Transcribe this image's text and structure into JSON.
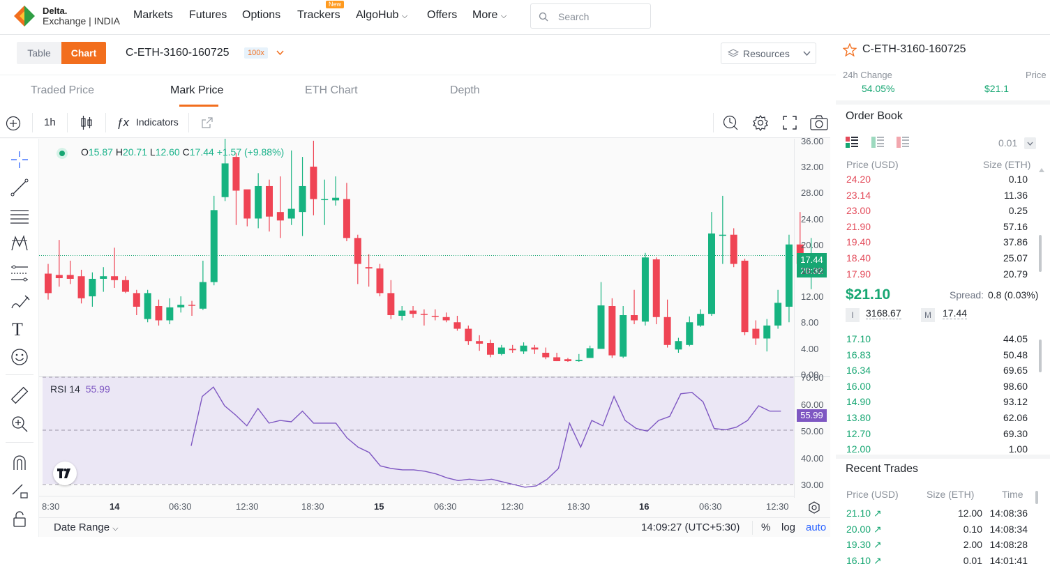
{
  "brand": {
    "line1": "Delta.",
    "line2": "Exchange | INDIA"
  },
  "nav": {
    "items": [
      "Markets",
      "Futures",
      "Options",
      "Trackers",
      "AlgoHub",
      "Offers",
      "More"
    ],
    "new_badge": "New",
    "search_placeholder": "Search"
  },
  "subbar": {
    "table_label": "Table",
    "chart_label": "Chart",
    "symbol": "C-ETH-3160-160725",
    "leverage": "100x",
    "resources_label": "Resources"
  },
  "tabs": [
    "Traded Price",
    "Mark Price",
    "ETH Chart",
    "Depth"
  ],
  "chart_toolbar": {
    "interval": "1h",
    "indicators_label": "Indicators"
  },
  "ohlc": {
    "O": "15.87",
    "H": "20.71",
    "L": "12.60",
    "C": "17.44",
    "change": "+1.57 (+9.88%)"
  },
  "rsi": {
    "label": "RSI 14",
    "value": "55.99",
    "last_tag": "55.99"
  },
  "price_tag": {
    "price": "17.44",
    "countdown": "20:32"
  },
  "bottom_bar": {
    "date_range": "Date Range",
    "time": "14:09:27 (UTC+5:30)",
    "pct": "%",
    "log": "log",
    "auto": "auto"
  },
  "colors": {
    "up": "#16b380",
    "down": "#ef4454",
    "accent": "#f26e1d",
    "rsi": "#7e57c2"
  },
  "chart_data": {
    "type": "candlestick",
    "y_ticks": [
      "36.00",
      "32.00",
      "28.00",
      "24.00",
      "20.00",
      "16.00",
      "12.00",
      "8.00",
      "4.00",
      "0.00"
    ],
    "rsi_ticks": [
      "70.00",
      "60.00",
      "50.00",
      "40.00",
      "30.00"
    ],
    "x_ticks": [
      "8:30",
      "14",
      "06:30",
      "12:30",
      "18:30",
      "15",
      "06:30",
      "12:30",
      "18:30",
      "16",
      "06:30",
      "12:30"
    ],
    "candles": [
      [
        15.0,
        12.0,
        16.5,
        11.0
      ],
      [
        14.8,
        14.3,
        20.2,
        13.0
      ],
      [
        14.8,
        14.2,
        17.0,
        13.4
      ],
      [
        14.6,
        11.2,
        15.6,
        10.4
      ],
      [
        11.5,
        14.2,
        15.2,
        9.9
      ],
      [
        14.2,
        14.6,
        16.0,
        12.2
      ],
      [
        14.6,
        14.0,
        19.0,
        12.8
      ],
      [
        14.0,
        12.2,
        14.6,
        12.0
      ],
      [
        12.0,
        9.9,
        12.5,
        8.6
      ],
      [
        8.0,
        12.0,
        12.5,
        7.5
      ],
      [
        10.0,
        7.8,
        11.0,
        7.0
      ],
      [
        7.8,
        9.8,
        11.2,
        7.2
      ],
      [
        9.8,
        10.2,
        11.5,
        9.0
      ],
      [
        10.2,
        10.1,
        10.8,
        8.5
      ],
      [
        9.6,
        13.7,
        17.0,
        9.4
      ],
      [
        13.7,
        24.8,
        27.0,
        13.2
      ],
      [
        26.8,
        32.0,
        36.0,
        26.2
      ],
      [
        33.0,
        27.8,
        33.6,
        22.5
      ],
      [
        28.0,
        23.5,
        27.5,
        22.3
      ],
      [
        23.5,
        28.5,
        30.5,
        22.0
      ],
      [
        28.5,
        23.8,
        29.5,
        21.5
      ],
      [
        24.5,
        23.2,
        30.0,
        20.5
      ],
      [
        23.5,
        25.0,
        34.0,
        22.5
      ],
      [
        24.5,
        28.5,
        33.0,
        20.8
      ],
      [
        31.5,
        26.5,
        35.5,
        24.0
      ],
      [
        26.5,
        26.5,
        29.5,
        22.5
      ],
      [
        26.3,
        26.7,
        30.0,
        25.5
      ],
      [
        26.5,
        20.5,
        29.0,
        20.0
      ],
      [
        20.5,
        16.5,
        21.0,
        13.4
      ],
      [
        16.0,
        15.8,
        18.0,
        13.0
      ],
      [
        15.8,
        12.0,
        16.5,
        11.5
      ],
      [
        12.0,
        8.6,
        14.0,
        8.0
      ],
      [
        8.5,
        9.3,
        10.0,
        7.8
      ],
      [
        9.3,
        8.8,
        10.0,
        8.2
      ],
      [
        8.8,
        8.7,
        9.5,
        7.0
      ],
      [
        8.5,
        8.4,
        9.5,
        7.8
      ],
      [
        8.3,
        7.8,
        9.0,
        7.5
      ],
      [
        7.5,
        6.5,
        8.5,
        6.2
      ],
      [
        6.5,
        4.6,
        7.0,
        4.0
      ],
      [
        4.6,
        4.2,
        5.5,
        3.1
      ],
      [
        4.3,
        2.5,
        4.8,
        2.1
      ],
      [
        2.6,
        3.6,
        4.0,
        2.4
      ],
      [
        3.4,
        3.2,
        4.0,
        2.8
      ],
      [
        3.0,
        3.9,
        4.4,
        2.6
      ],
      [
        3.6,
        3.3,
        4.0,
        2.6
      ],
      [
        2.8,
        2.1,
        3.6,
        1.8
      ],
      [
        2.1,
        1.5,
        2.8,
        1.5
      ],
      [
        1.8,
        1.5,
        2.0,
        1.4
      ],
      [
        1.5,
        1.7,
        2.6,
        1.4
      ],
      [
        2.0,
        3.5,
        3.9,
        2.2
      ],
      [
        3.4,
        10.1,
        13.7,
        3.6
      ],
      [
        10.0,
        2.4,
        11.2,
        2.0
      ],
      [
        2.2,
        8.6,
        10.0,
        2.0
      ],
      [
        8.6,
        7.8,
        12.5,
        7.2
      ],
      [
        7.6,
        17.5,
        18.2,
        7.0
      ],
      [
        17.2,
        8.3,
        17.5,
        7.2
      ],
      [
        8.3,
        4.0,
        11.0,
        3.6
      ],
      [
        3.3,
        4.6,
        5.1,
        2.8
      ],
      [
        4.0,
        7.5,
        8.4,
        3.8
      ],
      [
        7.0,
        8.8,
        9.5,
        6.8
      ],
      [
        8.8,
        21.2,
        24.5,
        8.5
      ],
      [
        21.0,
        21.0,
        27.0,
        16.5
      ],
      [
        21.0,
        16.5,
        22.0,
        16.0
      ],
      [
        17.0,
        6.0,
        17.3,
        5.5
      ],
      [
        6.5,
        5.0,
        7.8,
        4.0
      ],
      [
        5.0,
        7.0,
        8.0,
        3.0
      ],
      [
        7.0,
        10.5,
        12.5,
        6.5
      ],
      [
        9.9,
        19.5,
        21.0,
        7.5
      ],
      [
        19.5,
        16.5,
        24.5,
        15.0
      ],
      [
        16.0,
        17.8,
        20.5,
        12.6
      ]
    ],
    "rsi_values": [
      44.5,
      63,
      66.5,
      59.5,
      56,
      52,
      58.5,
      53,
      54,
      53.5,
      57.5,
      53,
      53,
      53,
      47.5,
      44,
      42,
      37,
      36,
      35.5,
      35.5,
      35,
      34,
      32.5,
      31.5,
      32,
      31.5,
      32,
      31,
      30,
      29,
      29.5,
      32,
      36,
      53,
      44,
      54,
      52,
      63,
      54,
      51,
      50,
      54,
      55.5,
      64,
      64.5,
      61,
      51,
      50.5,
      51.5,
      54,
      59.5,
      57.5,
      57.5
    ],
    "price_ticks": []
  },
  "right": {
    "symbol": "C-ETH-3160-160725",
    "change_label": "24h Change",
    "price_label": "Price",
    "change_value": "54.05%",
    "price_value": "$21.1",
    "orderbook_title": "Order Book",
    "tick_size": "0.01",
    "price_col": "Price (USD)",
    "size_col": "Size (ETH)",
    "asks": [
      {
        "p": "24.20",
        "s": "0.10"
      },
      {
        "p": "23.14",
        "s": "11.36"
      },
      {
        "p": "23.00",
        "s": "0.25"
      },
      {
        "p": "21.90",
        "s": "57.16"
      },
      {
        "p": "19.40",
        "s": "37.86"
      },
      {
        "p": "18.40",
        "s": "25.07"
      },
      {
        "p": "17.90",
        "s": "20.79"
      }
    ],
    "last_price": "$21.10",
    "spread_label": "Spread:",
    "spread_value": "0.8 (0.03%)",
    "index_label": "I",
    "index_value": "3168.67",
    "mark_label": "M",
    "mark_value": "17.44",
    "bids": [
      {
        "p": "17.10",
        "s": "44.05"
      },
      {
        "p": "16.83",
        "s": "50.48"
      },
      {
        "p": "16.34",
        "s": "69.65"
      },
      {
        "p": "16.00",
        "s": "98.60"
      },
      {
        "p": "14.90",
        "s": "93.12"
      },
      {
        "p": "13.80",
        "s": "62.06"
      },
      {
        "p": "12.70",
        "s": "69.30"
      },
      {
        "p": "12.00",
        "s": "1.00"
      }
    ],
    "trades_title": "Recent Trades",
    "trades_cols": [
      "Price (USD)",
      "Size (ETH)",
      "Time"
    ],
    "trades": [
      {
        "p": "21.10",
        "s": "12.00",
        "t": "14:08:36"
      },
      {
        "p": "20.00",
        "s": "0.10",
        "t": "14:08:34"
      },
      {
        "p": "19.30",
        "s": "2.00",
        "t": "14:08:28"
      },
      {
        "p": "16.10",
        "s": "0.01",
        "t": "14:01:41"
      }
    ]
  }
}
